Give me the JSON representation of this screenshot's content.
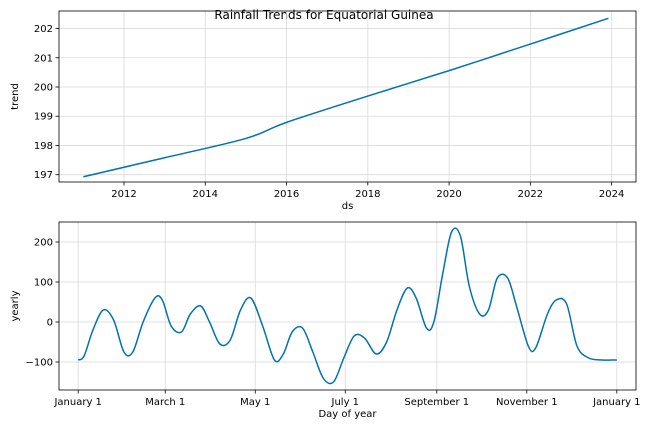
{
  "title": "Rainfall Trends for Equatorial Guinea",
  "chart_data": [
    {
      "type": "line",
      "name": "trend",
      "xlabel": "ds",
      "ylabel": "trend",
      "xlim": [
        2010.4,
        2024.6
      ],
      "ylim": [
        196.75,
        202.6
      ],
      "xticks": [
        2012,
        2014,
        2016,
        2018,
        2020,
        2022,
        2024
      ],
      "xtick_labels": [
        "2012",
        "2014",
        "2016",
        "2018",
        "2020",
        "2022",
        "2024"
      ],
      "yticks": [
        197,
        198,
        199,
        200,
        201,
        202
      ],
      "ytick_labels": [
        "197",
        "198",
        "199",
        "200",
        "201",
        "202"
      ],
      "grid": true,
      "color": "#0072B2",
      "x": [
        2011.0,
        2013.0,
        2015.0,
        2016.0,
        2018.0,
        2020.0,
        2022.0,
        2023.92
      ],
      "y": [
        196.93,
        197.58,
        198.24,
        198.79,
        199.69,
        200.56,
        201.47,
        202.35
      ]
    },
    {
      "type": "line",
      "name": "yearly",
      "xlabel": "Day of year",
      "ylabel": "yearly",
      "xlim": [
        -13,
        378
      ],
      "ylim": [
        -170,
        250
      ],
      "xticks": [
        0,
        59,
        120,
        181,
        243,
        304,
        365
      ],
      "xtick_labels": [
        "January 1",
        "March 1",
        "May 1",
        "July 1",
        "September 1",
        "November 1",
        "January 1"
      ],
      "yticks": [
        -100,
        0,
        100,
        200
      ],
      "ytick_labels": [
        "−100",
        "0",
        "100",
        "200"
      ],
      "grid": true,
      "color": "#0072B2",
      "x": [
        0,
        4,
        10,
        17,
        24,
        31,
        37,
        44,
        52,
        57,
        63,
        70,
        76,
        83,
        89,
        96,
        103,
        110,
        117,
        125,
        133,
        139,
        145,
        152,
        159,
        166,
        173,
        180,
        187,
        194,
        202,
        209,
        216,
        223,
        229,
        236,
        241,
        247,
        253,
        259,
        265,
        272,
        278,
        284,
        291,
        297,
        305,
        310,
        318,
        324,
        331,
        338,
        346,
        355,
        361,
        365
      ],
      "y": [
        -95,
        -85,
        -20,
        30,
        5,
        -75,
        -75,
        0,
        60,
        55,
        -10,
        -25,
        20,
        40,
        0,
        -55,
        -45,
        30,
        60,
        -10,
        -95,
        -80,
        -25,
        -15,
        -75,
        -140,
        -150,
        -90,
        -35,
        -40,
        -80,
        -50,
        30,
        85,
        60,
        -15,
        0,
        120,
        225,
        215,
        90,
        20,
        30,
        110,
        110,
        40,
        -60,
        -65,
        20,
        55,
        45,
        -60,
        -90,
        -95,
        -95,
        -95
      ]
    }
  ]
}
